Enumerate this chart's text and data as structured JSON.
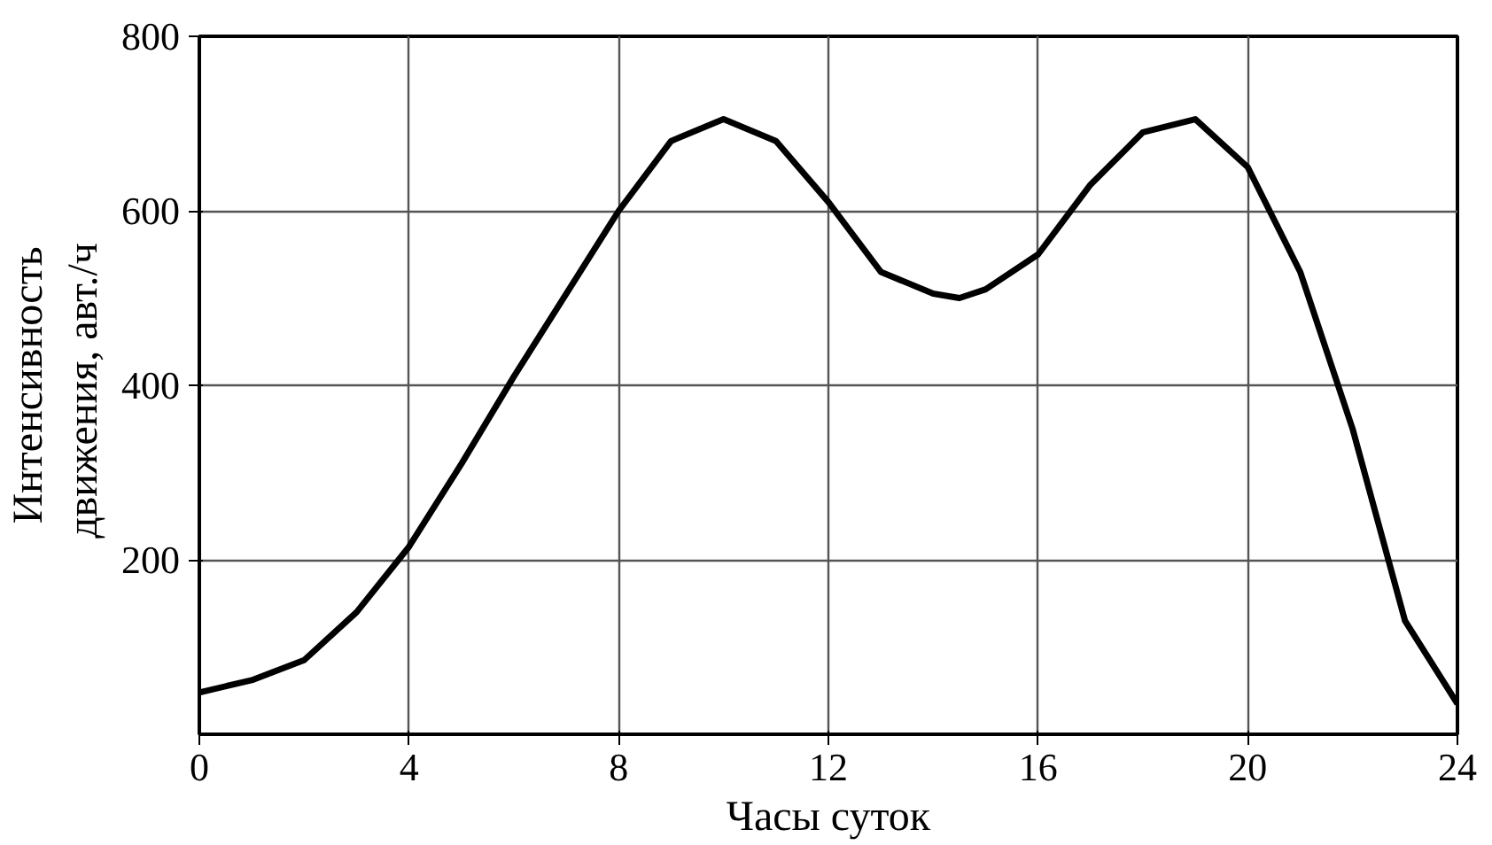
{
  "chart_data": {
    "type": "line",
    "xlabel": "Часы суток",
    "ylabel": "Интенсивность\nдвижения,  авт./ч",
    "x": [
      0,
      1,
      2,
      3,
      4,
      5,
      6,
      7,
      8,
      9,
      10,
      11,
      12,
      13,
      14,
      14.5,
      15,
      16,
      17,
      18,
      19,
      20,
      21,
      22,
      23,
      24
    ],
    "series": [
      {
        "color": "#000000",
        "values": [
          48,
          62,
          85,
          140,
          215,
          310,
          410,
          505,
          600,
          680,
          705,
          680,
          610,
          530,
          505,
          500,
          510,
          550,
          630,
          690,
          705,
          650,
          530,
          350,
          130,
          35
        ]
      }
    ],
    "xlim": [
      0,
      24
    ],
    "ylim": [
      0,
      800
    ],
    "xticks": [
      0,
      4,
      8,
      12,
      16,
      20,
      24
    ],
    "yticks": [
      200,
      400,
      600,
      800
    ],
    "grid": true,
    "marker": "none",
    "line_style": "solid"
  }
}
